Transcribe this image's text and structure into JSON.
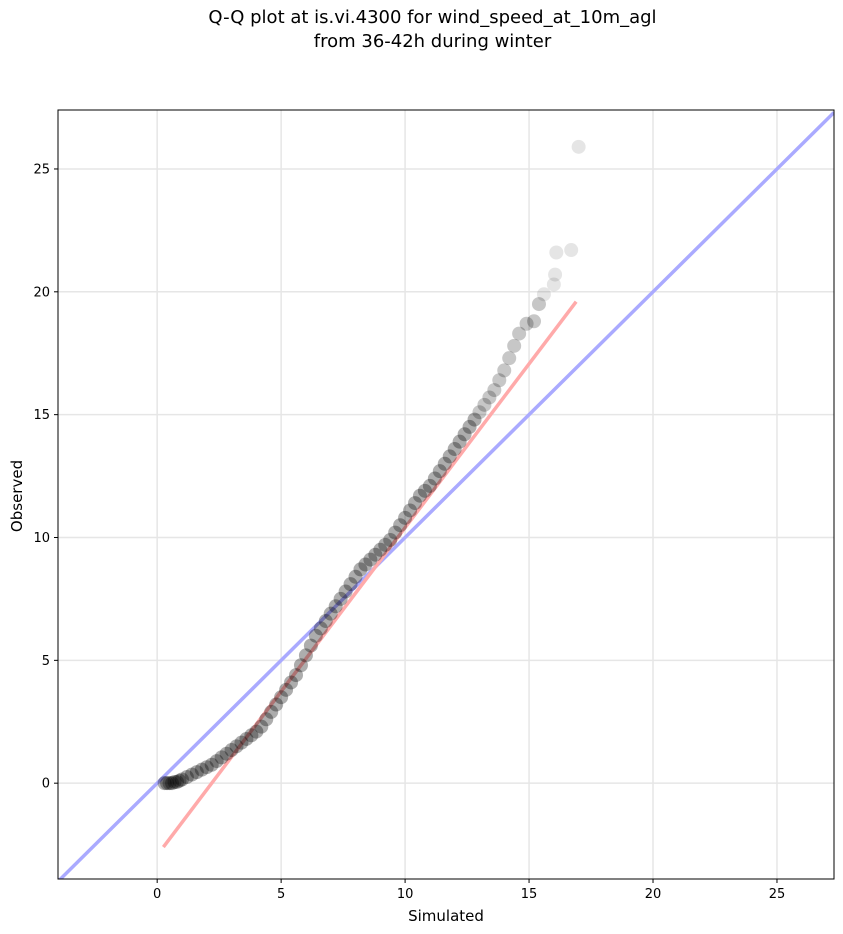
{
  "chart_data": {
    "type": "scatter",
    "title_line1": "Q-Q plot at is.vi.4300 for wind_speed_at_10m_agl",
    "title_line2": "from 36-42h during winter",
    "xlabel": "Simulated",
    "ylabel": "Observed",
    "xlim": [
      -4,
      27.3
    ],
    "ylim": [
      -3.9,
      27.4
    ],
    "xticks": [
      0,
      5,
      10,
      15,
      20,
      25
    ],
    "yticks": [
      0,
      5,
      10,
      15,
      20,
      25
    ],
    "grid": true,
    "reference_line": {
      "color": "#aaaaff",
      "x": [
        -4,
        27.3
      ],
      "y": [
        -4,
        27.3
      ]
    },
    "fit_line": {
      "color": "#ffaaaa",
      "x": [
        0.25,
        16.9
      ],
      "y": [
        -2.6,
        19.6
      ]
    },
    "points": {
      "color": "#000000",
      "x": [
        0.3,
        0.4,
        0.5,
        0.6,
        0.7,
        0.8,
        0.9,
        1.0,
        1.2,
        1.4,
        1.6,
        1.8,
        2.0,
        2.2,
        2.4,
        2.6,
        2.8,
        3.0,
        3.2,
        3.4,
        3.6,
        3.8,
        4.0,
        4.2,
        4.4,
        4.6,
        4.8,
        5.0,
        5.2,
        5.4,
        5.6,
        5.8,
        6.0,
        6.2,
        6.4,
        6.6,
        6.8,
        7.0,
        7.2,
        7.4,
        7.6,
        7.8,
        8.0,
        8.2,
        8.4,
        8.6,
        8.8,
        9.0,
        9.2,
        9.4,
        9.6,
        9.8,
        10.0,
        10.2,
        10.4,
        10.6,
        10.8,
        11.0,
        11.2,
        11.4,
        11.6,
        11.8,
        12.0,
        12.2,
        12.4,
        12.6,
        12.8,
        13.0,
        13.2,
        13.4,
        13.6,
        13.8,
        14.0,
        14.2,
        14.4,
        14.6,
        14.9,
        15.2,
        15.4,
        15.6,
        16.0,
        16.05,
        16.1,
        16.7,
        17.0
      ],
      "y": [
        0.0,
        0.0,
        0.0,
        0.0,
        0.05,
        0.05,
        0.1,
        0.15,
        0.25,
        0.35,
        0.45,
        0.55,
        0.65,
        0.75,
        0.9,
        1.05,
        1.2,
        1.35,
        1.5,
        1.65,
        1.8,
        1.95,
        2.1,
        2.3,
        2.6,
        2.9,
        3.2,
        3.5,
        3.8,
        4.1,
        4.4,
        4.8,
        5.2,
        5.6,
        6.0,
        6.3,
        6.6,
        6.9,
        7.2,
        7.5,
        7.8,
        8.1,
        8.4,
        8.7,
        8.9,
        9.1,
        9.3,
        9.5,
        9.7,
        9.9,
        10.2,
        10.5,
        10.8,
        11.1,
        11.4,
        11.7,
        11.9,
        12.1,
        12.4,
        12.7,
        13.0,
        13.3,
        13.6,
        13.9,
        14.2,
        14.5,
        14.8,
        15.1,
        15.4,
        15.7,
        16.0,
        16.4,
        16.8,
        17.3,
        17.8,
        18.3,
        18.7,
        18.8,
        19.5,
        19.9,
        20.3,
        20.7,
        21.6,
        21.7,
        25.9
      ]
    }
  }
}
